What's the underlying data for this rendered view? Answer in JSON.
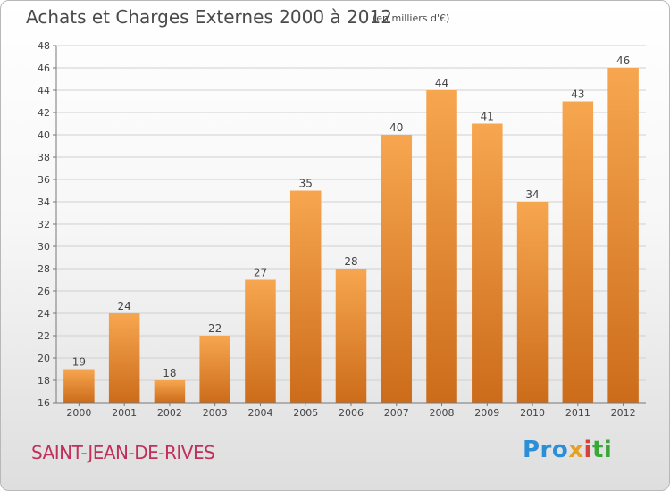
{
  "header": {
    "title": "Achats et Charges Externes 2000 à 2012",
    "subtitle": "(en milliers d'€)"
  },
  "footer": {
    "commune": "SAINT-JEAN-DE-RIVES",
    "logo": [
      "Pro",
      "x",
      "i",
      "ti"
    ]
  },
  "colors": {
    "bar_top": "#f7a650",
    "bar_bottom": "#cc6c1a",
    "commune": "#c0305a"
  },
  "chart_data": {
    "type": "bar",
    "categories": [
      "2000",
      "2001",
      "2002",
      "2003",
      "2004",
      "2005",
      "2006",
      "2007",
      "2008",
      "2009",
      "2010",
      "2011",
      "2012"
    ],
    "values": [
      19,
      24,
      18,
      22,
      27,
      35,
      28,
      40,
      44,
      41,
      34,
      43,
      46
    ],
    "title": "Achats et Charges Externes 2000 à 2012",
    "subtitle": "(en milliers d'€)",
    "xlabel": "",
    "ylabel": "",
    "ylim": [
      16,
      48
    ],
    "yticks": [
      16,
      18,
      20,
      22,
      24,
      26,
      28,
      30,
      32,
      34,
      36,
      38,
      40,
      42,
      44,
      46,
      48
    ],
    "grid": true,
    "legend": "none"
  }
}
